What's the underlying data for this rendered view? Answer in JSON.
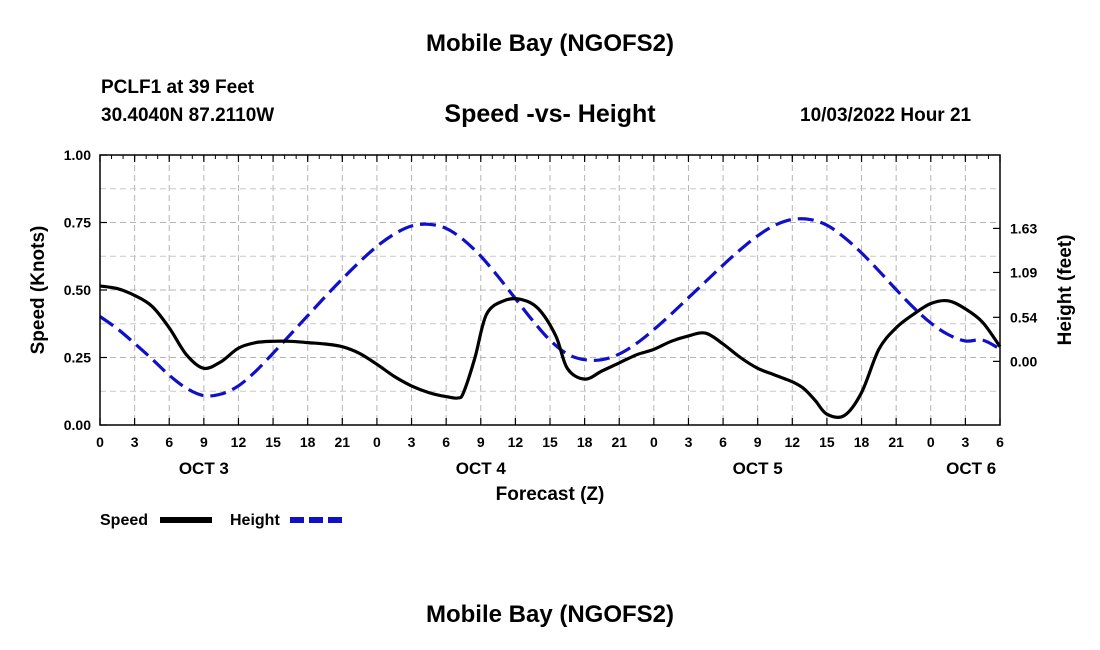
{
  "header": {
    "title": "Mobile Bay (NGOFS2)",
    "station": "PCLF1 at 39 Feet",
    "coords": "30.4040N  87.2110W",
    "timestamp": "10/03/2022 Hour 21"
  },
  "footer": {
    "title": "Mobile Bay (NGOFS2)"
  },
  "chart_data": {
    "type": "line",
    "title": "Speed -vs- Height",
    "xlabel": "Forecast (Z)",
    "ylabel": "Speed (Knots)",
    "y2label": "Height (feet)",
    "xlim": [
      0,
      78
    ],
    "ylim": [
      0,
      1.0
    ],
    "y2lim": [
      -0.78,
      2.53
    ],
    "grid": true,
    "legend_position": "bottom-left",
    "x_ticks": [
      0,
      3,
      6,
      9,
      12,
      15,
      18,
      21,
      24,
      27,
      30,
      33,
      36,
      39,
      42,
      45,
      48,
      51,
      54,
      57,
      60,
      63,
      66,
      69,
      72,
      75,
      78
    ],
    "x_tick_labels": [
      "0",
      "3",
      "6",
      "9",
      "12",
      "15",
      "18",
      "21",
      "0",
      "3",
      "6",
      "9",
      "12",
      "15",
      "18",
      "21",
      "0",
      "3",
      "6",
      "9",
      "12",
      "15",
      "18",
      "21",
      "0",
      "3",
      "6"
    ],
    "y_ticks": [
      "0.00",
      "0.25",
      "0.50",
      "0.75",
      "1.00"
    ],
    "y_tick_values": [
      0,
      0.25,
      0.5,
      0.75,
      1.0
    ],
    "y2_ticks": [
      "0.00",
      "0.54",
      "1.09",
      "1.63"
    ],
    "y2_tick_values": [
      0.0,
      0.54,
      1.09,
      1.63
    ],
    "day_labels": [
      {
        "x": 9,
        "label": "OCT 3"
      },
      {
        "x": 33,
        "label": "OCT 4"
      },
      {
        "x": 57,
        "label": "OCT 5"
      },
      {
        "x": 75.5,
        "label": "OCT 6"
      }
    ],
    "series": [
      {
        "name": "Speed",
        "axis": "left",
        "color": "#000000",
        "style": "solid",
        "x": [
          0,
          1.5,
          3,
          4.5,
          6,
          7.5,
          9,
          10.5,
          12,
          13.5,
          15,
          16.5,
          18,
          19.5,
          21,
          22.5,
          24,
          25.5,
          27,
          28.5,
          30,
          31,
          31.5,
          32.5,
          33.5,
          35,
          36.5,
          38,
          39.5,
          40.5,
          42,
          43.5,
          45,
          46.5,
          48,
          49.5,
          51,
          52.5,
          54,
          55.5,
          57,
          58.5,
          60,
          61,
          62,
          63,
          64.5,
          66,
          67.5,
          69,
          70.5,
          72,
          73.5,
          75,
          76.5,
          78
        ],
        "values": [
          0.515,
          0.505,
          0.48,
          0.44,
          0.36,
          0.26,
          0.21,
          0.235,
          0.285,
          0.305,
          0.31,
          0.31,
          0.305,
          0.3,
          0.29,
          0.265,
          0.225,
          0.18,
          0.145,
          0.12,
          0.105,
          0.1,
          0.12,
          0.25,
          0.41,
          0.46,
          0.465,
          0.43,
          0.33,
          0.21,
          0.17,
          0.2,
          0.23,
          0.26,
          0.28,
          0.31,
          0.33,
          0.34,
          0.3,
          0.25,
          0.21,
          0.185,
          0.16,
          0.135,
          0.09,
          0.04,
          0.035,
          0.12,
          0.28,
          0.36,
          0.41,
          0.45,
          0.46,
          0.43,
          0.38,
          0.29
        ]
      },
      {
        "name": "Height",
        "axis": "right",
        "color": "#1010c8",
        "style": "dashed",
        "x": [
          0,
          1.5,
          3,
          4.5,
          6,
          7.5,
          9,
          10.5,
          12,
          13.5,
          15,
          16.5,
          18,
          19.5,
          21,
          22.5,
          24,
          25.5,
          27,
          28.5,
          30,
          31.5,
          33,
          34.5,
          36,
          37.5,
          39,
          40.5,
          42,
          43.5,
          45,
          46.5,
          48,
          49.5,
          51,
          52.5,
          54,
          55.5,
          57,
          58.5,
          60,
          61.5,
          63,
          64.5,
          66,
          67.5,
          69,
          70.5,
          72,
          73.5,
          75,
          76.5,
          78
        ],
        "values": [
          0.55,
          0.4,
          0.22,
          0.03,
          -0.17,
          -0.33,
          -0.42,
          -0.4,
          -0.3,
          -0.12,
          0.1,
          0.33,
          0.56,
          0.79,
          1.01,
          1.22,
          1.41,
          1.56,
          1.66,
          1.68,
          1.63,
          1.49,
          1.29,
          1.04,
          0.77,
          0.5,
          0.26,
          0.09,
          0.02,
          0.02,
          0.09,
          0.22,
          0.39,
          0.58,
          0.78,
          0.98,
          1.18,
          1.37,
          1.54,
          1.67,
          1.74,
          1.74,
          1.67,
          1.52,
          1.33,
          1.11,
          0.88,
          0.66,
          0.47,
          0.33,
          0.25,
          0.26,
          0.15
        ]
      }
    ]
  }
}
